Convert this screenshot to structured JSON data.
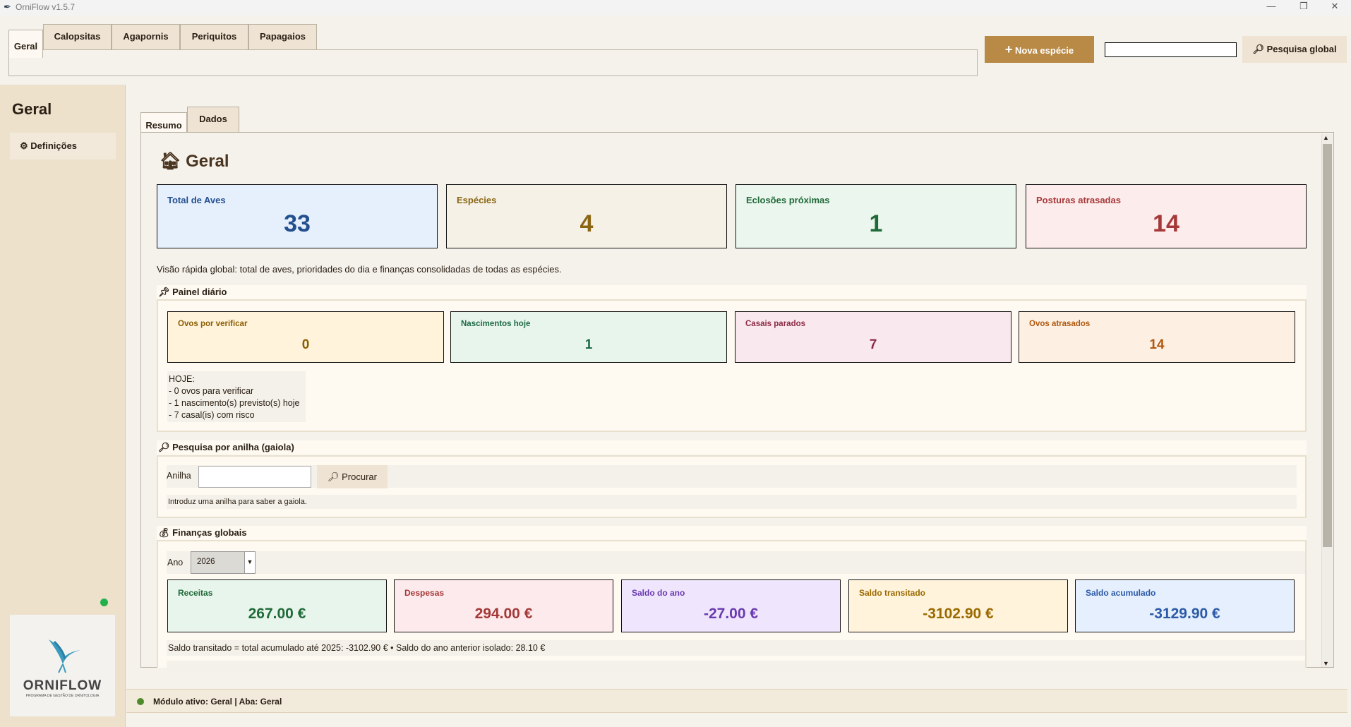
{
  "window": {
    "title": "OrniFlow v1.5.7",
    "controls": [
      "—",
      "❐",
      "✕"
    ]
  },
  "top_tabs": [
    {
      "label": "Geral",
      "selected": true
    },
    {
      "label": "Calopsitas"
    },
    {
      "label": "Agapornis"
    },
    {
      "label": "Periquitos"
    },
    {
      "label": "Papagaios"
    }
  ],
  "toolbar": {
    "new_species": "Nova espécie",
    "search_value": "",
    "global_search": "Pesquisa global",
    "accent": "#b98a45"
  },
  "sidebar": {
    "title": "Geral",
    "items": [
      {
        "label": "Definições",
        "icon": "gear-icon"
      }
    ],
    "logo_text": "ORNIFLOW",
    "logo_sub": "PROGRAMA DE GESTÃO DE ORNITOLOGIA"
  },
  "inner_tabs": [
    {
      "label": "Resumo",
      "selected": true
    },
    {
      "label": "Dados"
    }
  ],
  "main": {
    "title": "Geral",
    "stats": [
      {
        "label": "Total de Aves",
        "value": "33",
        "bg": "#e6f0fd",
        "color": "#234f8e"
      },
      {
        "label": "Espécies",
        "value": "4",
        "bg": "#f5f1e6",
        "color": "#8a6514"
      },
      {
        "label": "Eclosões próximas",
        "value": "1",
        "bg": "#ebf6ee",
        "color": "#1f6a38"
      },
      {
        "label": "Posturas atrasadas",
        "value": "14",
        "bg": "#fdecec",
        "color": "#a53838"
      }
    ],
    "description": "Visão rápida global: total de aves, prioridades do dia e finanças consolidadas de todas as espécies.",
    "daily": {
      "title": "Painel diário",
      "cards": [
        {
          "label": "Ovos por verificar",
          "value": "0",
          "bg": "#fff3dc",
          "color": "#8a5d00"
        },
        {
          "label": "Nascimentos hoje",
          "value": "1",
          "bg": "#e7f5ec",
          "color": "#1f6a45"
        },
        {
          "label": "Casais parados",
          "value": "7",
          "bg": "#f9e8ed",
          "color": "#8b2a45"
        },
        {
          "label": "Ovos atrasados",
          "value": "14",
          "bg": "#fdf0e3",
          "color": "#b0580e"
        }
      ],
      "today_lines": [
        "HOJE:",
        "- 0 ovos para verificar",
        "- 1 nascimento(s) previsto(s) hoje",
        "- 7 casal(is) com risco"
      ]
    },
    "ring_search": {
      "title": "Pesquisa por anilha (gaiola)",
      "label": "Anilha",
      "value": "",
      "button": "Procurar",
      "hint": "Introduz uma anilha para saber a gaiola."
    },
    "finance": {
      "title": "Finanças globais",
      "year_label": "Ano",
      "year": "2026",
      "cards": [
        {
          "label": "Receitas",
          "value": "267.00 €",
          "bg": "#e8f5ec",
          "color": "#1f6a38"
        },
        {
          "label": "Despesas",
          "value": "294.00 €",
          "bg": "#fdeaec",
          "color": "#a53838"
        },
        {
          "label": "Saldo do ano",
          "value": "-27.00 €",
          "bg": "#efe6fd",
          "color": "#6a3ab0"
        },
        {
          "label": "Saldo transitado",
          "value": "-3102.90 €",
          "bg": "#fff3dc",
          "color": "#9a6a00"
        },
        {
          "label": "Saldo acumulado",
          "value": "-3129.90 €",
          "bg": "#e5effd",
          "color": "#2c5aa8"
        }
      ],
      "note": "Saldo transitado = total acumulado até 2025: -3102.90 € • Saldo do ano anterior isolado: 28.10 €"
    }
  },
  "status": {
    "text": "Módulo ativo: Geral | Aba: Geral",
    "dot_color": "#4e8a2a"
  }
}
